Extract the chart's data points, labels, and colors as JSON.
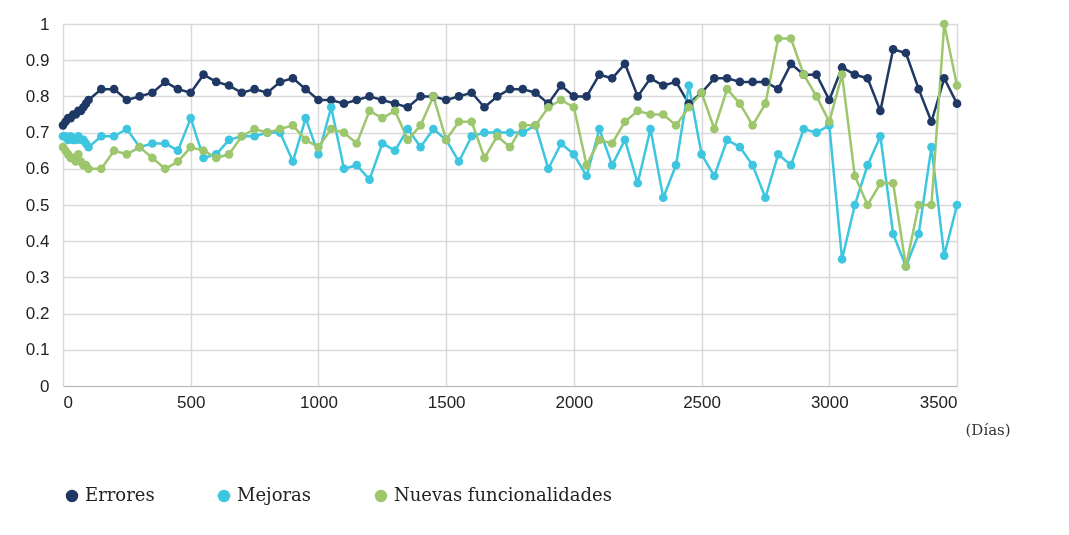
{
  "chart_data": {
    "type": "line",
    "xlabel": "(Días)",
    "x": [
      0,
      10,
      20,
      30,
      40,
      50,
      60,
      70,
      80,
      90,
      100,
      150,
      200,
      250,
      300,
      350,
      400,
      450,
      500,
      550,
      600,
      650,
      700,
      750,
      800,
      850,
      900,
      950,
      1000,
      1050,
      1100,
      1150,
      1200,
      1250,
      1300,
      1350,
      1400,
      1450,
      1500,
      1550,
      1600,
      1650,
      1700,
      1750,
      1800,
      1850,
      1900,
      1950,
      2000,
      2050,
      2100,
      2150,
      2200,
      2250,
      2300,
      2350,
      2400,
      2450,
      2500,
      2550,
      2600,
      2650,
      2700,
      2750,
      2800,
      2850,
      2900,
      2950,
      3000,
      3050,
      3100,
      3150,
      3200,
      3250,
      3300,
      3350,
      3400,
      3450,
      3500
    ],
    "series": [
      {
        "name": "Errores",
        "color": "#1f3864",
        "values": [
          0.72,
          0.73,
          0.74,
          0.74,
          0.75,
          0.75,
          0.76,
          0.76,
          0.77,
          0.78,
          0.79,
          0.82,
          0.82,
          0.79,
          0.8,
          0.81,
          0.84,
          0.82,
          0.81,
          0.86,
          0.84,
          0.83,
          0.81,
          0.82,
          0.81,
          0.84,
          0.85,
          0.82,
          0.79,
          0.79,
          0.78,
          0.79,
          0.8,
          0.79,
          0.78,
          0.77,
          0.8,
          0.8,
          0.79,
          0.8,
          0.81,
          0.77,
          0.8,
          0.82,
          0.82,
          0.81,
          0.78,
          0.83,
          0.8,
          0.8,
          0.86,
          0.85,
          0.89,
          0.8,
          0.85,
          0.83,
          0.84,
          0.78,
          0.81,
          0.85,
          0.85,
          0.84,
          0.84,
          0.84,
          0.82,
          0.89,
          0.86,
          0.86,
          0.79,
          0.88,
          0.86,
          0.85,
          0.76,
          0.93,
          0.92,
          0.82,
          0.73,
          0.85,
          0.78
        ]
      },
      {
        "name": "Mejoras",
        "color": "#3ec6e0",
        "values": [
          0.69,
          0.69,
          0.68,
          0.69,
          0.68,
          0.68,
          0.69,
          0.68,
          0.68,
          0.67,
          0.66,
          0.69,
          0.69,
          0.71,
          0.66,
          0.67,
          0.67,
          0.65,
          0.74,
          0.63,
          0.64,
          0.68,
          0.69,
          0.69,
          0.7,
          0.7,
          0.62,
          0.74,
          0.64,
          0.77,
          0.6,
          0.61,
          0.57,
          0.67,
          0.65,
          0.71,
          0.66,
          0.71,
          0.68,
          0.62,
          0.69,
          0.7,
          0.7,
          0.7,
          0.7,
          0.72,
          0.6,
          0.67,
          0.64,
          0.58,
          0.71,
          0.61,
          0.68,
          0.56,
          0.71,
          0.52,
          0.61,
          0.83,
          0.64,
          0.58,
          0.68,
          0.66,
          0.61,
          0.52,
          0.64,
          0.61,
          0.71,
          0.7,
          0.72,
          0.35,
          0.5,
          0.61,
          0.69,
          0.42,
          0.33,
          0.42,
          0.66,
          0.36,
          0.5
        ]
      },
      {
        "name": "Nuevas funcionalidades",
        "color": "#9dc66d",
        "values": [
          0.66,
          0.65,
          0.64,
          0.63,
          0.63,
          0.62,
          0.64,
          0.62,
          0.61,
          0.61,
          0.6,
          0.6,
          0.65,
          0.64,
          0.66,
          0.63,
          0.6,
          0.62,
          0.66,
          0.65,
          0.63,
          0.64,
          0.69,
          0.71,
          0.7,
          0.71,
          0.72,
          0.68,
          0.66,
          0.71,
          0.7,
          0.67,
          0.76,
          0.74,
          0.76,
          0.68,
          0.72,
          0.8,
          0.68,
          0.73,
          0.73,
          0.63,
          0.69,
          0.66,
          0.72,
          0.72,
          0.77,
          0.79,
          0.77,
          0.61,
          0.68,
          0.67,
          0.73,
          0.76,
          0.75,
          0.75,
          0.72,
          0.77,
          0.81,
          0.71,
          0.82,
          0.78,
          0.72,
          0.78,
          0.96,
          0.96,
          0.86,
          0.8,
          0.73,
          0.86,
          0.58,
          0.5,
          0.56,
          0.56,
          0.33,
          0.5,
          0.5,
          1.0,
          0.83
        ]
      }
    ],
    "xlim": [
      0,
      3500
    ],
    "xticks": [
      0,
      500,
      1000,
      1500,
      2000,
      2500,
      3000,
      3500
    ],
    "ylim": [
      0,
      1
    ],
    "yticks": [
      0,
      0.1,
      0.2,
      0.3,
      0.4,
      0.5,
      0.6,
      0.7,
      0.8,
      0.9,
      1
    ],
    "grid": true,
    "legend": "bottom",
    "marker": "circle",
    "line_style": "solid"
  }
}
